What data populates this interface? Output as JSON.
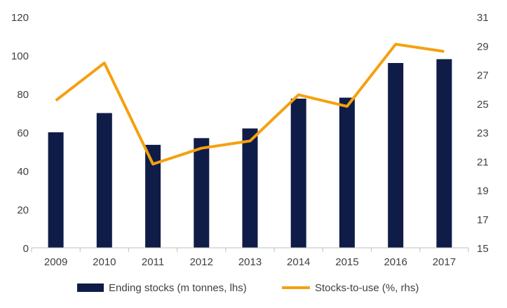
{
  "chart_data": {
    "type": "bar",
    "categories": [
      "2009",
      "2010",
      "2011",
      "2012",
      "2013",
      "2014",
      "2015",
      "2016",
      "2017"
    ],
    "series": [
      {
        "name": "Ending stocks (m tonnes, lhs)",
        "type": "bar",
        "axis": "left",
        "color": "#0f1c47",
        "values": [
          60,
          70,
          53.5,
          57,
          62,
          77.5,
          78,
          96,
          98
        ]
      },
      {
        "name": "Stocks-to-use (%, rhs)",
        "type": "line",
        "axis": "right",
        "color": "#f5a00f",
        "values": [
          25.2,
          27.8,
          20.8,
          21.9,
          22.4,
          25.6,
          24.8,
          29.1,
          28.6
        ]
      }
    ],
    "y_left": {
      "min": 0,
      "max": 120,
      "ticks": [
        "0",
        "20",
        "40",
        "60",
        "80",
        "100",
        "120"
      ]
    },
    "y_right": {
      "min": 15,
      "max": 31,
      "ticks": [
        "15",
        "17",
        "19",
        "21",
        "23",
        "25",
        "27",
        "29",
        "31"
      ]
    },
    "legend": {
      "position": "bottom"
    },
    "grid": false,
    "title": "",
    "xlabel": "",
    "ylabel": ""
  }
}
